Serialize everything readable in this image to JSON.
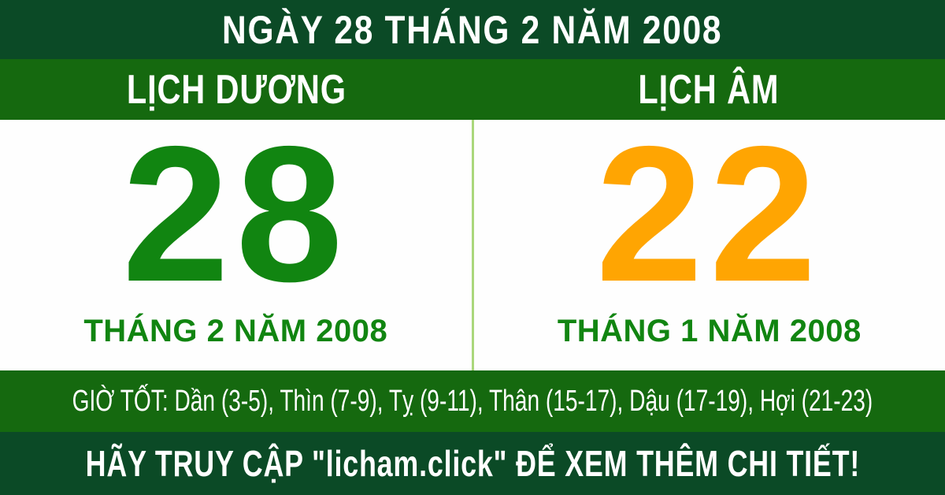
{
  "header": {
    "title": "NGÀY 28 THÁNG 2 NĂM 2008"
  },
  "bands": {
    "solar_label": "LỊCH DƯƠNG",
    "lunar_label": "LỊCH ÂM"
  },
  "solar": {
    "day": "28",
    "month_year": "THÁNG 2 NĂM 2008"
  },
  "lunar": {
    "day": "22",
    "month_year": "THÁNG 1 NĂM 2008"
  },
  "good_hours": {
    "text": "GIỜ TỐT: Dần (3-5), Thìn (7-9), Tỵ (9-11), Thân (15-17), Dậu (17-19), Hợi (21-23)"
  },
  "footer": {
    "cta": "HÃY TRUY CẬP \"licham.click\" ĐỂ XEM THÊM CHI TIẾT!"
  },
  "colors": {
    "banner_bg": "#0B4A26",
    "band_bg": "#15690F",
    "panel_bg": "#FEFEFE",
    "solar_day": "#118511",
    "lunar_day": "#FFA502",
    "month_text": "#118511",
    "banner_text": "#FFFFFF",
    "divider": "#AAD77B"
  }
}
